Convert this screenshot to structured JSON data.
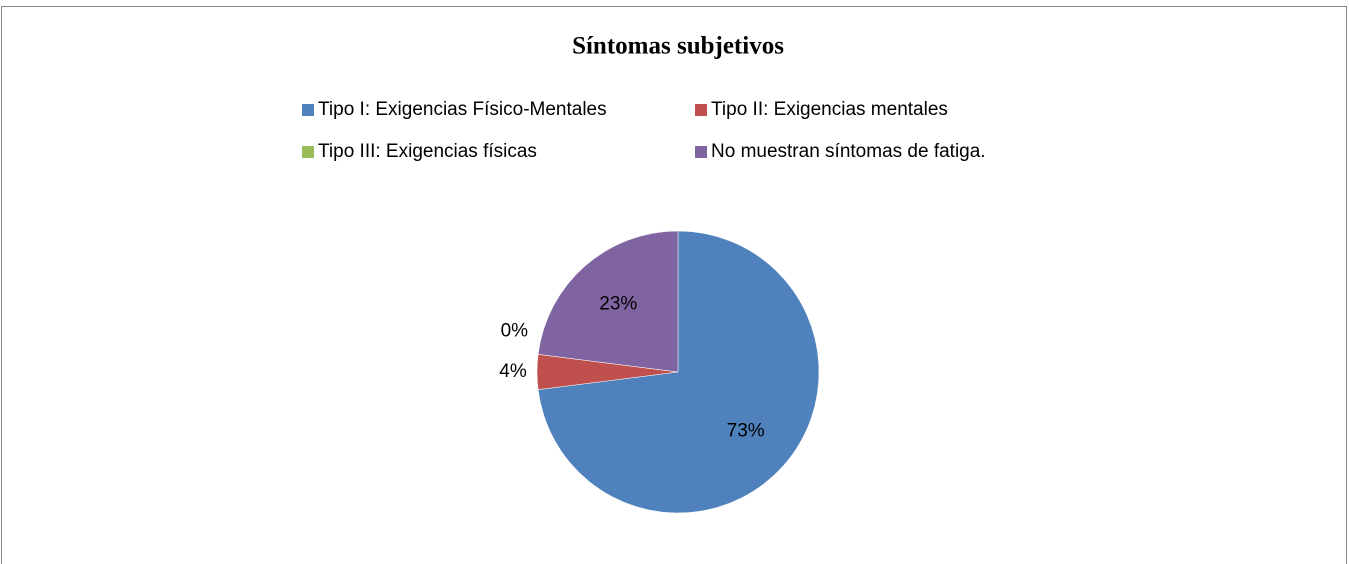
{
  "chart_data": {
    "type": "pie",
    "title": "Síntomas subjetivos",
    "categories": [
      "Tipo I: Exigencias Físico-Mentales",
      "Tipo II: Exigencias mentales",
      "Tipo III: Exigencias físicas",
      "No muestran síntomas de fatiga."
    ],
    "values": [
      73,
      4,
      0,
      23
    ],
    "value_labels": [
      "73%",
      "4%",
      "0%",
      "23%"
    ],
    "colors": [
      "#4f81bd",
      "#c0504d",
      "#9bbb59",
      "#8064a2"
    ],
    "legend": "top"
  }
}
